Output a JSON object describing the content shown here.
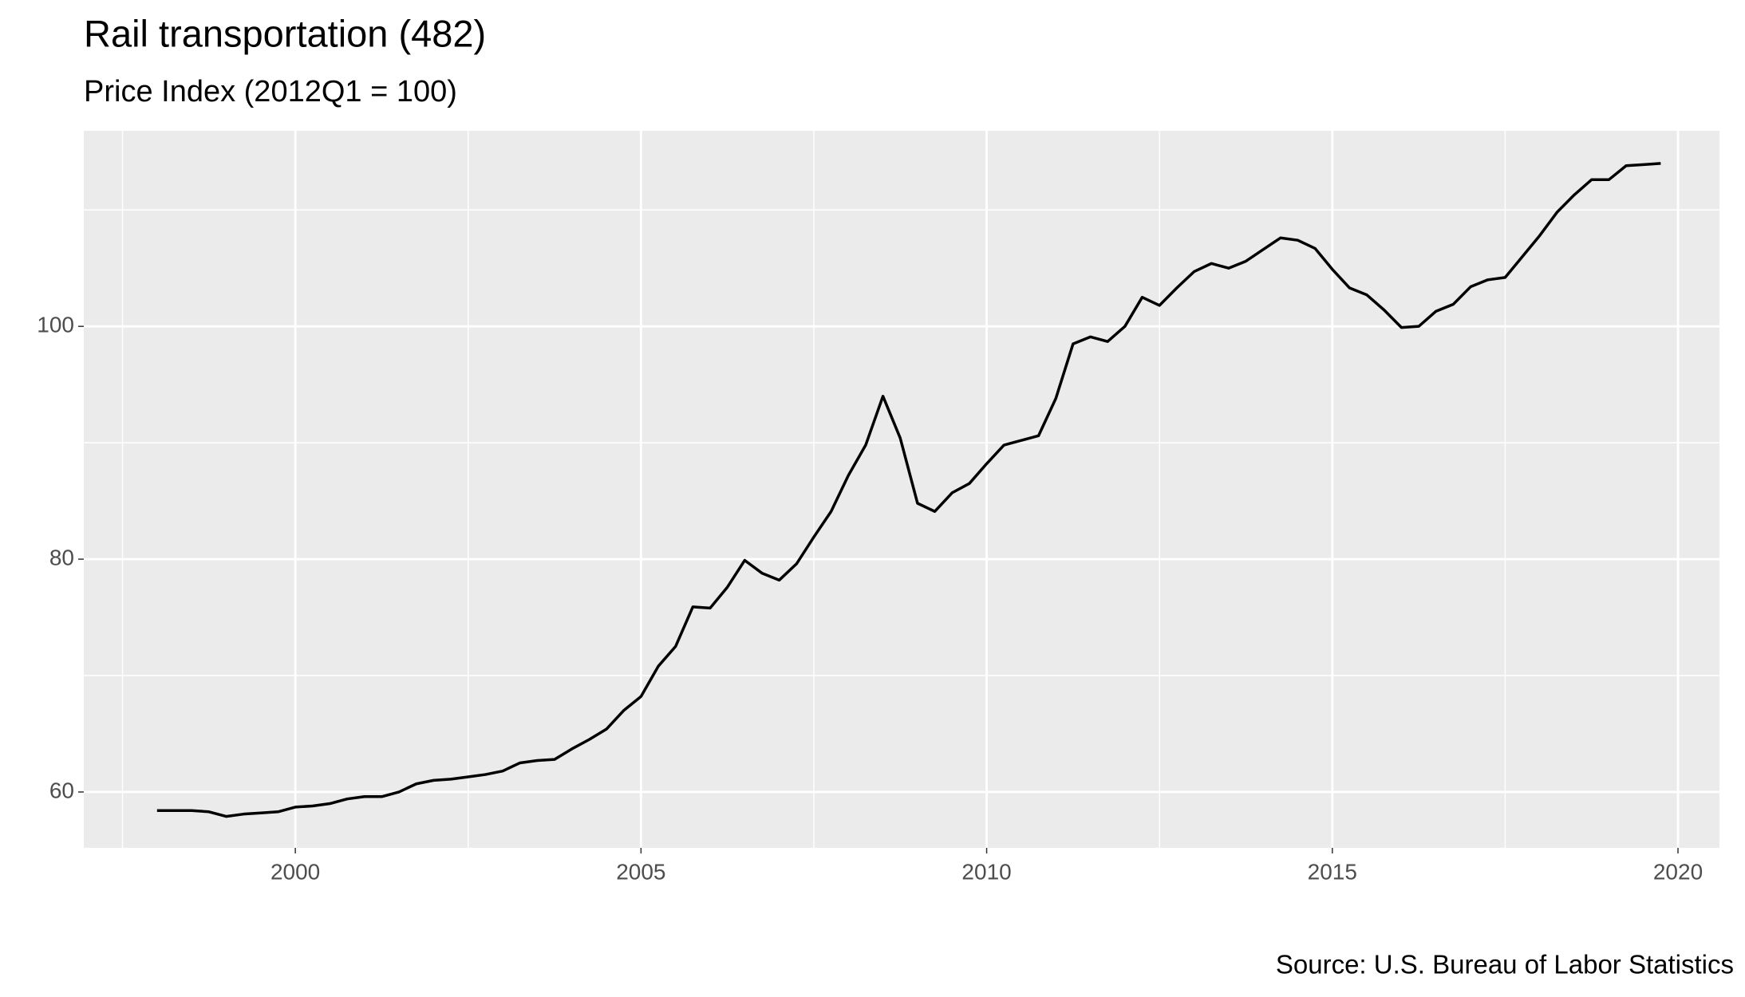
{
  "chart_data": {
    "type": "line",
    "title": "Rail transportation (482)",
    "subtitle": "Price Index (2012Q1 = 100)",
    "caption": "Source: U.S. Bureau of Labor Statistics",
    "x": [
      1998,
      1998.25,
      1998.5,
      1998.75,
      1999,
      1999.25,
      1999.5,
      1999.75,
      2000,
      2000.25,
      2000.5,
      2000.75,
      2001,
      2001.25,
      2001.5,
      2001.75,
      2002,
      2002.25,
      2002.5,
      2002.75,
      2003,
      2003.25,
      2003.5,
      2003.75,
      2004,
      2004.25,
      2004.5,
      2004.75,
      2005,
      2005.25,
      2005.5,
      2005.75,
      2006,
      2006.25,
      2006.5,
      2006.75,
      2007,
      2007.25,
      2007.5,
      2007.75,
      2008,
      2008.25,
      2008.5,
      2008.75,
      2009,
      2009.25,
      2009.5,
      2009.75,
      2010,
      2010.25,
      2010.5,
      2010.75,
      2011,
      2011.25,
      2011.5,
      2011.75,
      2012,
      2012.25,
      2012.5,
      2012.75,
      2013,
      2013.25,
      2013.5,
      2013.75,
      2014,
      2014.25,
      2014.5,
      2014.75,
      2015,
      2015.25,
      2015.5,
      2015.75,
      2016,
      2016.25,
      2016.5,
      2016.75,
      2017,
      2017.25,
      2017.5,
      2017.75,
      2018,
      2018.25,
      2018.5,
      2018.75,
      2019,
      2019.25,
      2019.5,
      2019.75
    ],
    "series": [
      {
        "color": "#000000",
        "values": [
          58.4,
          58.4,
          58.4,
          58.3,
          57.9,
          58.1,
          58.2,
          58.3,
          58.7,
          58.8,
          59.0,
          59.4,
          59.6,
          59.6,
          60.0,
          60.7,
          61.0,
          61.1,
          61.3,
          61.5,
          61.8,
          62.5,
          62.7,
          62.8,
          63.7,
          64.5,
          65.4,
          67.0,
          68.2,
          70.8,
          72.5,
          75.9,
          75.8,
          77.6,
          79.9,
          78.8,
          78.2,
          79.6,
          81.9,
          84.1,
          87.2,
          89.8,
          94.0,
          90.4,
          84.8,
          84.1,
          85.7,
          86.5,
          88.2,
          89.8,
          90.2,
          90.6,
          93.8,
          98.5,
          99.1,
          98.7,
          100.0,
          102.5,
          101.8,
          103.3,
          104.7,
          105.4,
          105.0,
          105.6,
          106.6,
          107.6,
          107.4,
          106.7,
          104.9,
          103.3,
          102.7,
          101.4,
          99.9,
          100.0,
          101.3,
          101.9,
          103.4,
          104.0,
          104.2,
          106.0,
          107.8,
          109.8,
          111.3,
          112.6,
          112.6,
          113.8,
          113.9,
          114.0
        ]
      }
    ],
    "xlim": [
      1996.94,
      2020.6
    ],
    "xticks": [
      2000,
      2005,
      2010,
      2015,
      2020
    ],
    "ylim": [
      55.2,
      116.8
    ],
    "yticks": [
      60,
      80,
      100
    ],
    "grid": true
  }
}
